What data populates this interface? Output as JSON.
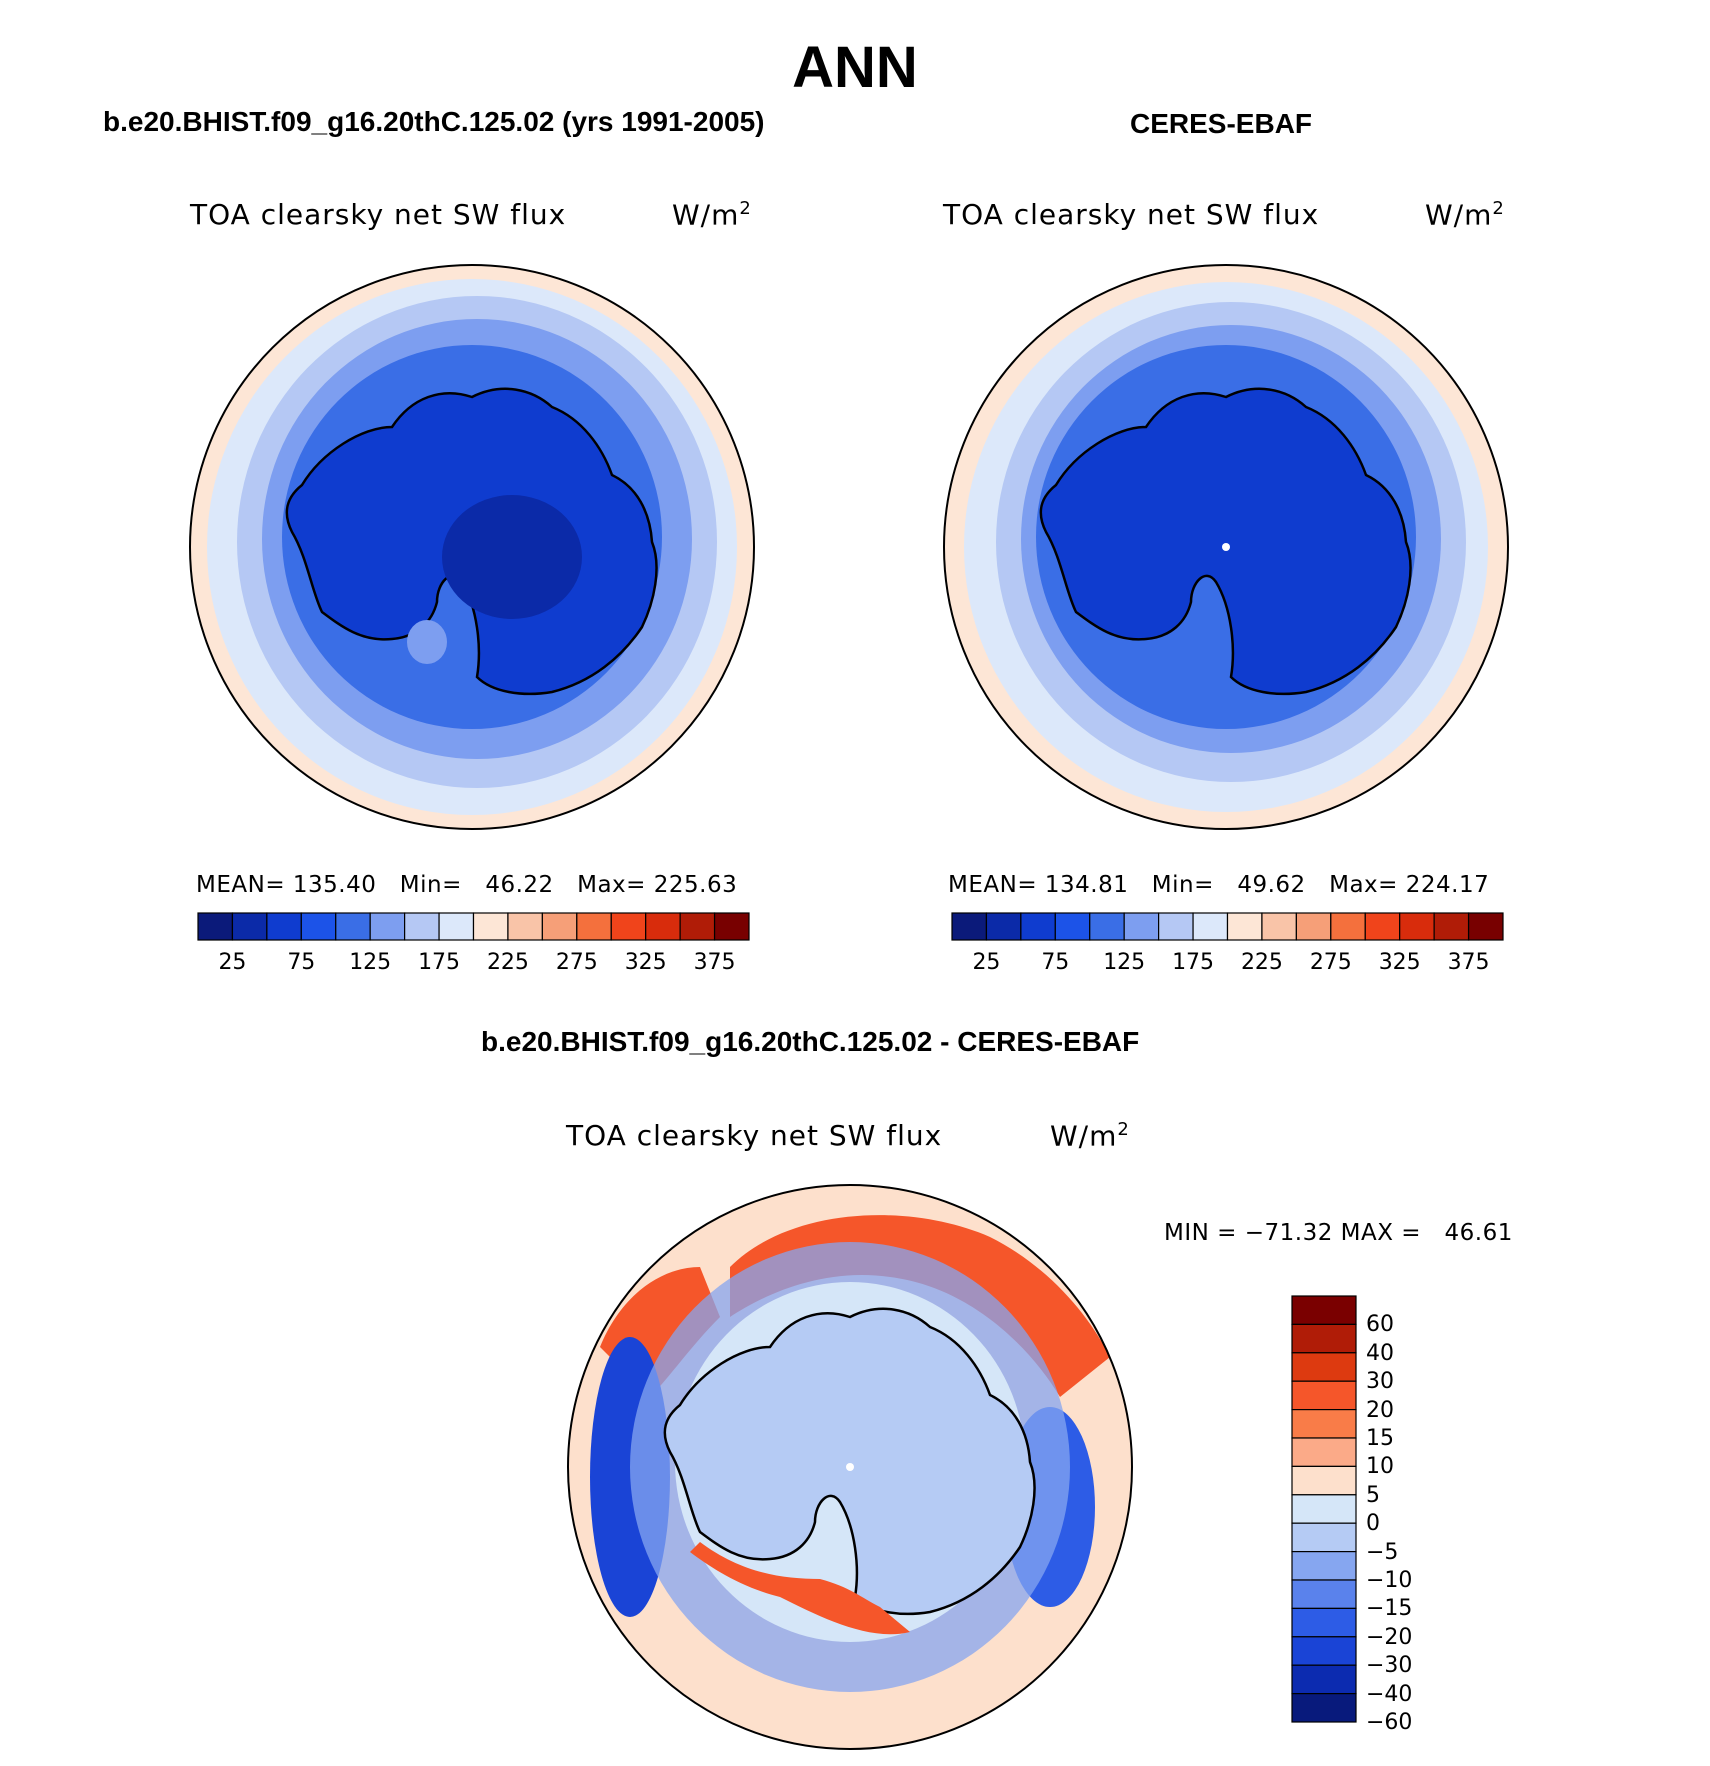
{
  "figure": {
    "title": "ANN",
    "panel_left_title": "b.e20.BHIST.f09_g16.20thC.125.02 (yrs 1991-2005)",
    "panel_right_title": "CERES-EBAF",
    "panel_diff_title": "b.e20.BHIST.f09_g16.20thC.125.02 - CERES-EBAF"
  },
  "panels": [
    {
      "variable": "TOA clearsky net SW flux",
      "units": "W/m",
      "units_sup": "2",
      "stats": "MEAN= 135.40   Min=   46.22   Max= 225.63"
    },
    {
      "variable": "TOA clearsky net SW flux",
      "units": "W/m",
      "units_sup": "2",
      "stats": "MEAN= 134.81   Min=   49.62   Max= 224.17"
    },
    {
      "variable": "TOA clearsky net SW flux",
      "units": "W/m",
      "units_sup": "2",
      "stats": "MIN = −71.32 MAX =   46.61"
    }
  ],
  "colorbar_main": {
    "colors": [
      "#0b1a7a",
      "#0b2aa8",
      "#0f3ccf",
      "#1c53e8",
      "#3a6ee6",
      "#7d9ef0",
      "#b5c8f4",
      "#dce8fa",
      "#fde6d6",
      "#f9c4a8",
      "#f69f78",
      "#f4703d",
      "#f0441b",
      "#d82c0c",
      "#b01c07",
      "#780000"
    ],
    "ticks": [
      "25",
      "75",
      "125",
      "175",
      "225",
      "275",
      "325",
      "375"
    ]
  },
  "colorbar_diff": {
    "colors": [
      "#7a0000",
      "#b01c07",
      "#dd3a10",
      "#f5562a",
      "#f97c48",
      "#fbaa88",
      "#fde0cc",
      "#d5e6f8",
      "#b5cbf4",
      "#86a6f0",
      "#5a82ec",
      "#2d5ce6",
      "#1a44d6",
      "#0c2bb0",
      "#081a7c"
    ],
    "labels": [
      "60",
      "40",
      "30",
      "20",
      "15",
      "10",
      "5",
      "0",
      "−5",
      "−10",
      "−15",
      "−20",
      "−30",
      "−40",
      "−60"
    ]
  },
  "chart_data": {
    "type": "heatmap",
    "title": "ANN",
    "maps": [
      {
        "name": "b.e20.BHIST.f09_g16.20thC.125.02 (yrs 1991-2005)",
        "mean": 135.4,
        "min": 46.22,
        "max": 225.63
      },
      {
        "name": "CERES-EBAF",
        "mean": 134.81,
        "min": 49.62,
        "max": 224.17
      },
      {
        "name": "b.e20.BHIST.f09_g16.20thC.125.02 - CERES-EBAF",
        "min": -71.32,
        "max": 46.61
      }
    ]
  }
}
